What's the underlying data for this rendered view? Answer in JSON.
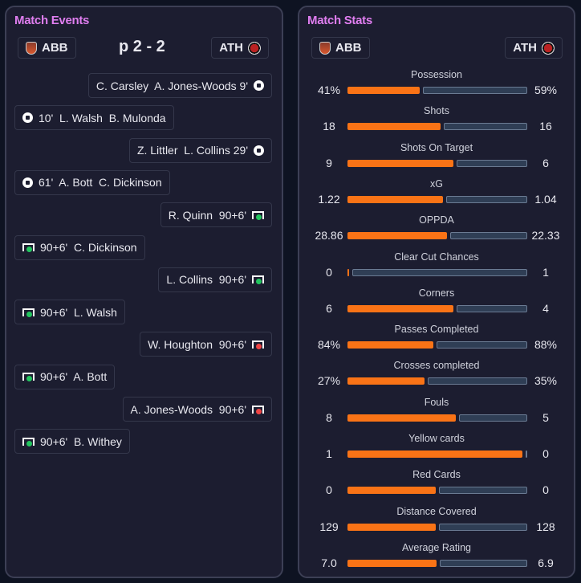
{
  "events_panel": {
    "title": "Match Events",
    "home": "ABB",
    "away": "ATH",
    "score": "p 2 - 2",
    "events": [
      {
        "side": "away",
        "text": "C. Carsley  A. Jones-Woods 9'",
        "icon": "goal"
      },
      {
        "side": "home",
        "text": "10'  L. Walsh  B. Mulonda",
        "icon": "goal"
      },
      {
        "side": "away",
        "text": "Z. Littler  L. Collins 29'",
        "icon": "goal"
      },
      {
        "side": "home",
        "text": "61'  A. Bott  C. Dickinson",
        "icon": "goal"
      },
      {
        "side": "away",
        "text": "R. Quinn  90+6'",
        "icon": "pen-scored"
      },
      {
        "side": "home",
        "text": "90+6'  C. Dickinson",
        "icon": "pen-scored"
      },
      {
        "side": "away",
        "text": "L. Collins  90+6'",
        "icon": "pen-scored"
      },
      {
        "side": "home",
        "text": "90+6'  L. Walsh",
        "icon": "pen-scored"
      },
      {
        "side": "away",
        "text": "W. Houghton  90+6'",
        "icon": "pen-missed"
      },
      {
        "side": "home",
        "text": "90+6'  A. Bott",
        "icon": "pen-scored"
      },
      {
        "side": "away",
        "text": "A. Jones-Woods  90+6'",
        "icon": "pen-missed"
      },
      {
        "side": "home",
        "text": "90+6'  B. Withey",
        "icon": "pen-scored"
      }
    ]
  },
  "stats_panel": {
    "title": "Match Stats",
    "home": "ABB",
    "away": "ATH",
    "stats": [
      {
        "label": "Possession",
        "home": "41%",
        "away": "59%"
      },
      {
        "label": "Shots",
        "home": "18",
        "away": "16"
      },
      {
        "label": "Shots On Target",
        "home": "9",
        "away": "6"
      },
      {
        "label": "xG",
        "home": "1.22",
        "away": "1.04"
      },
      {
        "label": "OPPDA",
        "home": "28.86",
        "away": "22.33"
      },
      {
        "label": "Clear Cut Chances",
        "home": "0",
        "away": "1"
      },
      {
        "label": "Corners",
        "home": "6",
        "away": "4"
      },
      {
        "label": "Passes Completed",
        "home": "84%",
        "away": "88%"
      },
      {
        "label": "Crosses completed",
        "home": "27%",
        "away": "35%"
      },
      {
        "label": "Fouls",
        "home": "8",
        "away": "5"
      },
      {
        "label": "Yellow cards",
        "home": "1",
        "away": "0"
      },
      {
        "label": "Red Cards",
        "home": "0",
        "away": "0"
      },
      {
        "label": "Distance Covered",
        "home": "129",
        "away": "128"
      },
      {
        "label": "Average Rating",
        "home": "7.0",
        "away": "6.9"
      }
    ]
  },
  "colors": {
    "accent": "#e07ef0",
    "home_bar": "#f97316",
    "away_bar": "#2f3e55",
    "pen_scored": "#22c55e",
    "pen_missed": "#ef4444"
  }
}
